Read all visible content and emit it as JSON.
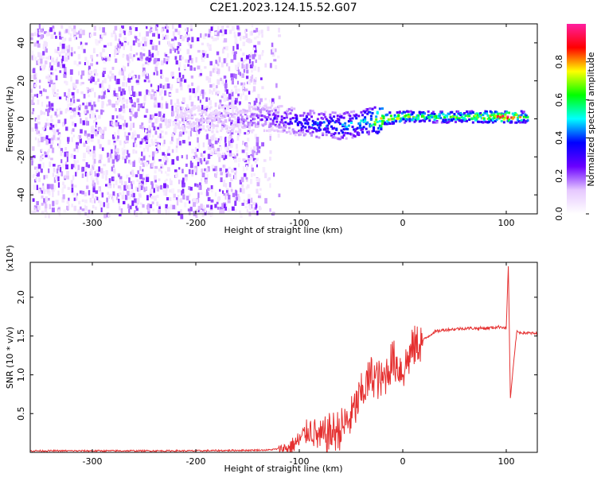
{
  "title": "C2E1.2023.124.15.52.G07",
  "chart_data": [
    {
      "type": "heatmap",
      "xlabel": "Height of straight line (km)",
      "ylabel": "Frequency (Hz)",
      "xlim": [
        -360,
        130
      ],
      "ylim": [
        -50,
        50
      ],
      "x_ticks": [
        -300,
        -200,
        -100,
        0,
        100
      ],
      "y_ticks": [
        -40,
        -20,
        0,
        20,
        40
      ],
      "colorbar": {
        "label": "Normalized spectral amplitude",
        "ticks": [
          0.0,
          0.2,
          0.4,
          0.6,
          0.8
        ],
        "range": [
          0,
          1
        ],
        "colormap": [
          "#ffffff",
          "#e6c8ff",
          "#6a00ff",
          "#0000ff",
          "#00ffff",
          "#00ff00",
          "#ffff00",
          "#ff0000",
          "#ff1fa0"
        ]
      },
      "ridge": [
        {
          "x": -220,
          "y": 0,
          "amp": 0.12
        },
        {
          "x": -180,
          "y": 0,
          "amp": 0.14
        },
        {
          "x": -150,
          "y": 0,
          "amp": 0.2
        },
        {
          "x": -120,
          "y": 0,
          "amp": 0.3
        },
        {
          "x": -100,
          "y": -2,
          "amp": 0.35
        },
        {
          "x": -80,
          "y": -3,
          "amp": 0.4
        },
        {
          "x": -60,
          "y": -4,
          "amp": 0.45
        },
        {
          "x": -40,
          "y": -2,
          "amp": 0.5
        },
        {
          "x": -20,
          "y": 0,
          "amp": 0.8
        },
        {
          "x": 0,
          "y": 1,
          "amp": 0.7
        },
        {
          "x": 30,
          "y": 1,
          "amp": 0.6
        },
        {
          "x": 60,
          "y": 1,
          "amp": 0.65
        },
        {
          "x": 90,
          "y": 1,
          "amp": 0.85
        },
        {
          "x": 100,
          "y": 1,
          "amp": 0.95
        },
        {
          "x": 120,
          "y": 1,
          "amp": 0.6
        }
      ]
    },
    {
      "type": "line",
      "xlabel": "Height of straight line (km)",
      "ylabel": "SNR (10 * v/v)",
      "y_multiplier": "(x10⁴)",
      "xlim": [
        -360,
        130
      ],
      "ylim": [
        0,
        2.45
      ],
      "x_ticks": [
        -300,
        -200,
        -100,
        0,
        100
      ],
      "y_ticks": [
        0.5,
        1.0,
        1.5,
        2.0
      ],
      "color": "#e53030",
      "series": [
        {
          "x": [
            -360,
            -300,
            -200,
            -130,
            -110,
            -100,
            -90,
            -80,
            -70,
            -60,
            -50,
            -40,
            -30,
            -20,
            -10,
            0,
            10,
            20,
            30,
            40,
            60,
            80,
            95,
            100,
            102,
            104,
            110,
            130
          ],
          "y": [
            0.02,
            0.02,
            0.02,
            0.03,
            0.06,
            0.15,
            0.3,
            0.18,
            0.25,
            0.3,
            0.45,
            0.75,
            1.0,
            0.9,
            1.2,
            1.05,
            1.35,
            1.45,
            1.55,
            1.58,
            1.6,
            1.6,
            1.62,
            1.6,
            2.4,
            0.7,
            1.55,
            1.53
          ]
        }
      ]
    }
  ]
}
